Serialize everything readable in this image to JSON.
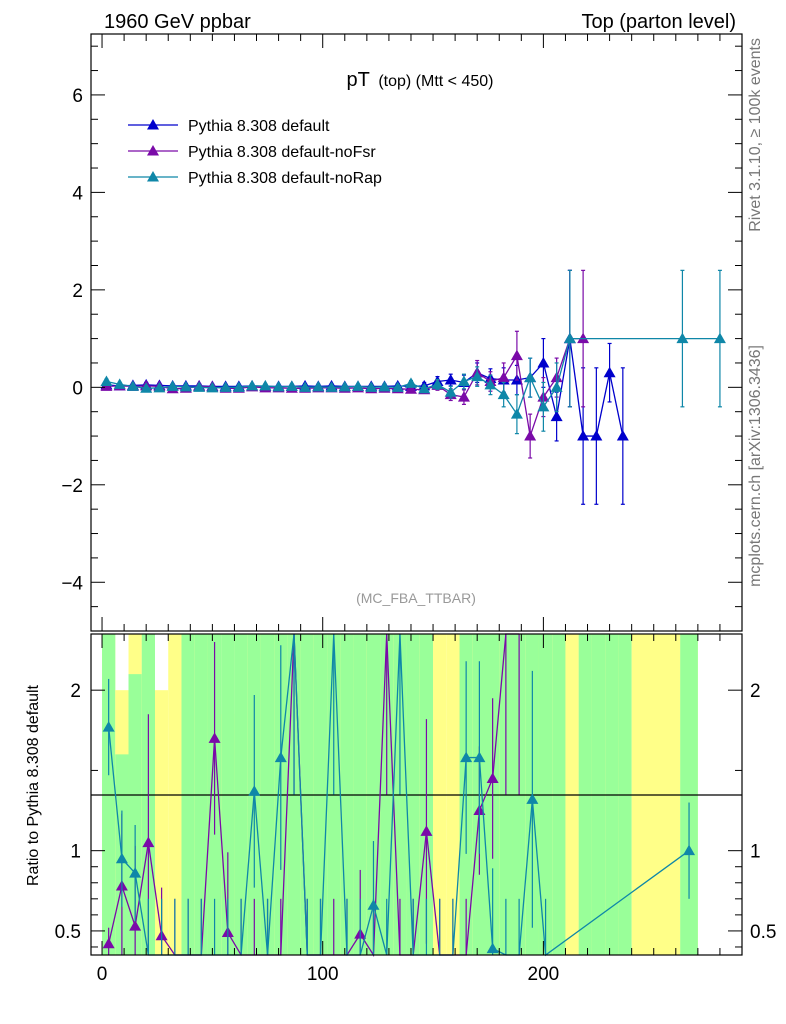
{
  "header": {
    "left": "1960 GeV ppbar",
    "right": "Top (parton level)"
  },
  "side": {
    "rivet": "Rivet 3.1.10, ≥ 100k events",
    "mcplots": "mcplots.cern.ch [arXiv:1306.3436]"
  },
  "chart_data": {
    "type": "line",
    "title_main": "pT",
    "title_sub": "(top) (Mtt < 450)",
    "watermark": "(MC_FBA_TTBAR)",
    "ylabel_ratio": "Ratio to Pythia 8.308 default",
    "xlim": [
      -5,
      290
    ],
    "ylim": [
      -5.0,
      7.25
    ],
    "ratio_ylim": [
      0.35,
      2.35
    ],
    "x_ticks": [
      "0",
      "100",
      "200"
    ],
    "y_ticks": [
      "−4",
      "−2",
      "0",
      "2",
      "4",
      "6"
    ],
    "ratio_ticks": [
      "0.5",
      "1",
      "2"
    ],
    "legend_position": "top-left",
    "colors": {
      "default": "#0000cc",
      "noFsr": "#7a0aa8",
      "noRap": "#0f87a8",
      "band_green": "#99ff99",
      "band_yellow": "#ffff88"
    },
    "series": [
      {
        "name": "Pythia 8.308 default",
        "color": "#0000cc",
        "x": [
          2,
          8,
          14,
          20,
          26,
          32,
          38,
          44,
          50,
          56,
          62,
          68,
          74,
          80,
          86,
          92,
          98,
          104,
          110,
          116,
          122,
          128,
          134,
          140,
          146,
          152,
          158,
          164,
          170,
          176,
          182,
          188,
          194,
          200,
          206,
          212,
          218,
          224,
          230,
          236,
          245,
          260,
          276
        ],
        "y": [
          0.05,
          0.03,
          0.04,
          0.05,
          0.04,
          0.03,
          0.03,
          0.03,
          0.02,
          0.02,
          0.02,
          0.03,
          0.02,
          0.02,
          0.02,
          0.03,
          0.02,
          0.03,
          0.02,
          0.02,
          0.02,
          0.02,
          0.03,
          0.02,
          0.03,
          0.12,
          0.15,
          0.1,
          0.3,
          0.18,
          0.15,
          0.15,
          0.2,
          0.5,
          -0.6,
          1.0,
          -1.0,
          -1.0,
          0.3,
          -1.0,
          null,
          null,
          null
        ],
        "yerr": [
          0.05,
          0.04,
          0.04,
          0.05,
          0.04,
          0.04,
          0.04,
          0.04,
          0.04,
          0.04,
          0.04,
          0.04,
          0.04,
          0.04,
          0.04,
          0.04,
          0.04,
          0.04,
          0.04,
          0.04,
          0.04,
          0.05,
          0.05,
          0.06,
          0.07,
          0.1,
          0.12,
          0.15,
          0.2,
          0.2,
          0.25,
          0.3,
          0.4,
          0.5,
          0.5,
          1.4,
          1.4,
          1.4,
          0.6,
          1.4,
          null,
          null,
          null
        ]
      },
      {
        "name": "Pythia 8.308 default-noFsr",
        "color": "#7a0aa8",
        "x": [
          2,
          8,
          14,
          20,
          26,
          32,
          38,
          44,
          50,
          56,
          62,
          68,
          74,
          80,
          86,
          92,
          98,
          104,
          110,
          116,
          122,
          128,
          134,
          140,
          146,
          152,
          158,
          164,
          170,
          176,
          182,
          188,
          194,
          200,
          206,
          212,
          218,
          224,
          230,
          236,
          245,
          260,
          276
        ],
        "y": [
          0.02,
          0.03,
          0.02,
          0.03,
          0.02,
          -0.03,
          -0.02,
          0.02,
          0.01,
          -0.02,
          -0.02,
          0.01,
          -0.01,
          -0.01,
          -0.02,
          -0.02,
          -0.01,
          -0.01,
          -0.02,
          -0.01,
          -0.03,
          -0.02,
          -0.03,
          -0.04,
          -0.05,
          0.04,
          -0.15,
          -0.2,
          0.3,
          0.12,
          0.2,
          0.65,
          -1.0,
          -0.2,
          0.2,
          1.0,
          1.0,
          null,
          null,
          null,
          null,
          null,
          null
        ],
        "yerr": [
          0.05,
          0.04,
          0.04,
          0.05,
          0.04,
          0.04,
          0.04,
          0.04,
          0.04,
          0.04,
          0.04,
          0.04,
          0.04,
          0.04,
          0.04,
          0.04,
          0.04,
          0.04,
          0.04,
          0.04,
          0.04,
          0.05,
          0.05,
          0.06,
          0.07,
          0.1,
          0.12,
          0.15,
          0.25,
          0.2,
          0.3,
          0.5,
          0.45,
          0.4,
          0.4,
          1.4,
          1.4,
          null,
          null,
          null,
          null,
          null,
          null
        ]
      },
      {
        "name": "Pythia 8.308 default-noRap",
        "color": "#0f87a8",
        "x": [
          2,
          8,
          14,
          20,
          26,
          32,
          38,
          44,
          50,
          56,
          62,
          68,
          74,
          80,
          86,
          92,
          98,
          104,
          110,
          116,
          122,
          128,
          134,
          140,
          146,
          152,
          158,
          164,
          170,
          176,
          182,
          188,
          194,
          200,
          206,
          212,
          218,
          224,
          230,
          236,
          245,
          263,
          280
        ],
        "y": [
          0.12,
          0.06,
          0.02,
          -0.02,
          -0.01,
          0.02,
          0.01,
          0.0,
          -0.01,
          0.0,
          0.0,
          0.03,
          0.03,
          0.01,
          0.02,
          0.0,
          0.01,
          0.0,
          0.01,
          0.02,
          0.0,
          0.01,
          0.0,
          0.08,
          -0.03,
          0.06,
          -0.1,
          0.12,
          0.22,
          0.05,
          -0.15,
          -0.55,
          0.2,
          -0.4,
          0.0,
          1.0,
          null,
          null,
          null,
          null,
          null,
          1.0,
          1.0
        ],
        "yerr": [
          0.05,
          0.04,
          0.04,
          0.05,
          0.04,
          0.04,
          0.04,
          0.04,
          0.04,
          0.04,
          0.04,
          0.04,
          0.04,
          0.04,
          0.04,
          0.04,
          0.04,
          0.04,
          0.04,
          0.04,
          0.04,
          0.05,
          0.05,
          0.06,
          0.07,
          0.1,
          0.12,
          0.15,
          0.2,
          0.2,
          0.25,
          0.4,
          0.4,
          0.5,
          0.5,
          1.4,
          null,
          null,
          null,
          null,
          null,
          1.4,
          1.4
        ]
      }
    ],
    "ratio_series": [
      {
        "name": "Pythia 8.308 default-noFsr",
        "color": "#7a0aa8",
        "x": [
          3,
          9,
          15,
          21,
          27,
          33,
          39,
          45,
          51,
          57,
          63,
          69,
          75,
          81,
          87,
          93,
          99,
          105,
          111,
          117,
          123,
          129,
          135,
          141,
          147,
          153,
          159,
          165,
          171,
          177,
          183,
          189
        ],
        "y": [
          0.42,
          0.78,
          0.53,
          1.05,
          0.47,
          0.2,
          0.2,
          0.2,
          1.7,
          0.49,
          0.2,
          0.2,
          0.2,
          0.2,
          2.35,
          0.2,
          0.2,
          0.2,
          0.2,
          0.48,
          0.2,
          2.35,
          0.2,
          0.2,
          1.12,
          0.2,
          0.2,
          0.2,
          1.25,
          1.45,
          2.35,
          2.35
        ],
        "yerr": [
          0.1,
          0.45,
          0.5,
          0.8,
          0.3,
          0.5,
          0.5,
          0.5,
          0.6,
          0.5,
          0.5,
          0.5,
          0.5,
          0.5,
          1.0,
          0.5,
          0.5,
          0.5,
          0.5,
          0.4,
          0.5,
          1.0,
          0.5,
          0.5,
          0.7,
          0.5,
          0.5,
          0.5,
          0.4,
          0.5,
          1.0,
          1.0
        ]
      },
      {
        "name": "Pythia 8.308 default-noRap",
        "color": "#0f87a8",
        "x": [
          3,
          9,
          15,
          21,
          27,
          33,
          39,
          45,
          51,
          57,
          63,
          69,
          75,
          81,
          87,
          93,
          99,
          105,
          111,
          117,
          123,
          129,
          135,
          141,
          147,
          153,
          159,
          165,
          171,
          177,
          183,
          189,
          195,
          201,
          266
        ],
        "y": [
          1.77,
          0.95,
          0.86,
          0.2,
          0.2,
          0.2,
          0.2,
          0.2,
          0.2,
          0.2,
          0.2,
          1.37,
          0.2,
          1.58,
          2.35,
          0.2,
          0.2,
          2.35,
          0.2,
          0.2,
          0.66,
          0.2,
          2.35,
          0.2,
          0.2,
          0.2,
          0.2,
          1.58,
          1.58,
          0.39,
          0.2,
          0.2,
          1.32,
          0.2,
          1.0
        ],
        "yerr": [
          0.3,
          0.3,
          0.3,
          0.5,
          0.5,
          0.5,
          0.5,
          0.5,
          0.5,
          0.5,
          0.5,
          0.6,
          0.5,
          0.7,
          1.0,
          0.5,
          0.5,
          1.0,
          0.5,
          0.5,
          0.4,
          0.5,
          1.0,
          0.5,
          0.5,
          0.5,
          0.5,
          0.6,
          0.6,
          0.5,
          0.5,
          0.5,
          0.8,
          0.5,
          0.3
        ]
      }
    ],
    "ratio_bands": {
      "edges": [
        0,
        6,
        12,
        18,
        24,
        30,
        36,
        42,
        48,
        54,
        60,
        66,
        72,
        78,
        84,
        90,
        96,
        102,
        108,
        114,
        120,
        126,
        132,
        138,
        144,
        150,
        156,
        162,
        168,
        174,
        180,
        186,
        192,
        198,
        204,
        210,
        216,
        222,
        228,
        234,
        240,
        262,
        270
      ],
      "yellow_hi": [
        2.35,
        2.0,
        2.35,
        2.35,
        2.0,
        2.35,
        2.35,
        2.35,
        2.35,
        1.85,
        2.35,
        2.35,
        2.35,
        2.35,
        2.35,
        2.35,
        2.35,
        2.35,
        2.35,
        2.35,
        2.35,
        2.35,
        2.35,
        2.35,
        2.35,
        2.35,
        2.35,
        2.35,
        2.35,
        2.35,
        2.35,
        2.35,
        2.35,
        2.35,
        2.35,
        2.35,
        2.35,
        2.35,
        2.35,
        2.35,
        2.35,
        2.35
      ],
      "green_hi": [
        2.35,
        1.6,
        2.1,
        2.35,
        2.35,
        2.35,
        2.35,
        2.35,
        2.35,
        2.35,
        2.35,
        2.35,
        2.35,
        2.35,
        2.35,
        2.35,
        2.35,
        2.35,
        2.35,
        2.35,
        2.35,
        2.35,
        2.35,
        2.35,
        2.35,
        2.35,
        2.35,
        2.35,
        2.35,
        2.35,
        2.35,
        2.35,
        2.35,
        2.35,
        2.35,
        2.35,
        2.35,
        2.35,
        2.35,
        2.35,
        2.35,
        2.35
      ],
      "green_on": [
        1,
        1,
        1,
        1,
        0,
        0,
        1,
        1,
        1,
        1,
        1,
        1,
        1,
        1,
        1,
        1,
        1,
        1,
        1,
        1,
        1,
        1,
        1,
        1,
        1,
        0,
        0,
        1,
        1,
        1,
        1,
        1,
        1,
        1,
        1,
        0,
        1,
        1,
        1,
        1,
        0,
        1
      ]
    }
  }
}
